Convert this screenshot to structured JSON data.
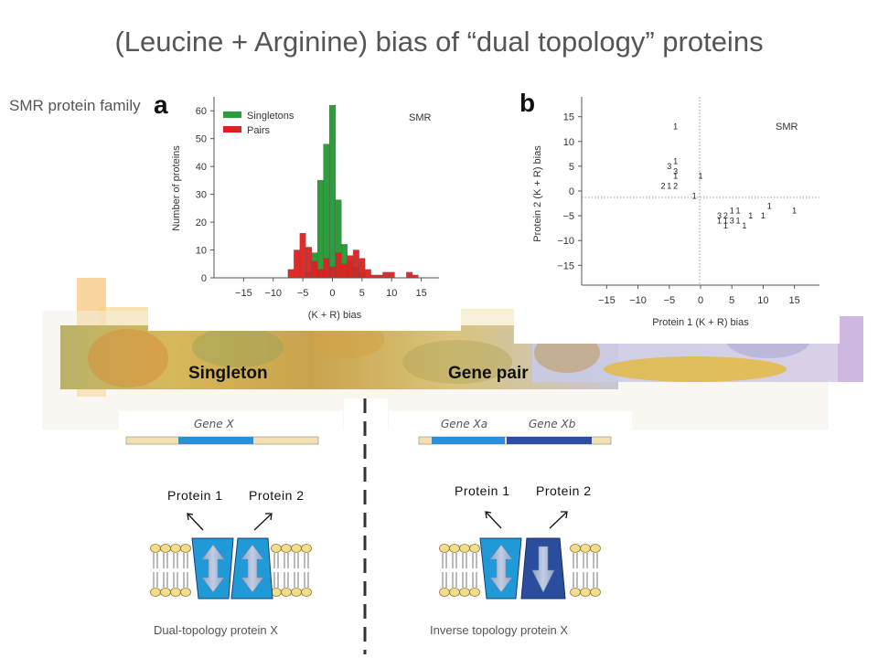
{
  "slide": {
    "title": "(Leucine + Arginine) bias of “dual topology” proteins",
    "side_label": "SMR protein family"
  },
  "panel_a": {
    "letter": "a",
    "tag": "SMR",
    "chart_data": {
      "type": "bar",
      "title": "",
      "xlabel": "(K + R) bias",
      "ylabel": "Number of proteins",
      "xlim": [
        -20,
        18
      ],
      "ylim": [
        0,
        65
      ],
      "x_ticks": [
        -15,
        -10,
        -5,
        0,
        5,
        10,
        15
      ],
      "y_ticks": [
        0,
        10,
        20,
        30,
        40,
        50,
        60
      ],
      "bin_width": 1,
      "legend_position": "top-left",
      "series": [
        {
          "name": "Singletons",
          "color": "#2e9e3c",
          "bins": [
            -6,
            -5,
            -4,
            -3,
            -2,
            -1,
            0,
            1,
            2,
            3,
            4,
            5
          ],
          "values": [
            0,
            0,
            2,
            9,
            35,
            48,
            62,
            28,
            12,
            6,
            4,
            2
          ]
        },
        {
          "name": "Pairs",
          "color": "#e02020",
          "bins": [
            -7,
            -6,
            -5,
            -4,
            -3,
            -2,
            -1,
            0,
            1,
            2,
            3,
            4,
            5,
            6,
            7,
            8,
            9,
            10,
            11,
            12,
            13,
            14
          ],
          "values": [
            3,
            10,
            16,
            11,
            6,
            3,
            7,
            4,
            9,
            5,
            8,
            10,
            7,
            3,
            1,
            1,
            2,
            2,
            0,
            0,
            2,
            1
          ]
        }
      ]
    }
  },
  "panel_b": {
    "letter": "b",
    "tag": "SMR",
    "chart_data": {
      "type": "scatter",
      "title": "",
      "xlabel": "Protein 1 (K + R) bias",
      "ylabel": "Protein 2 (K + R) bias",
      "xlim": [
        -19,
        19
      ],
      "ylim": [
        -19,
        19
      ],
      "x_ticks": [
        -15,
        -10,
        -5,
        0,
        5,
        10,
        15
      ],
      "y_ticks": [
        -15,
        -10,
        -5,
        0,
        5,
        10,
        15
      ],
      "points": [
        {
          "x": -4,
          "y": 13,
          "label": "1"
        },
        {
          "x": -5,
          "y": 5,
          "label": "3"
        },
        {
          "x": -4,
          "y": 6,
          "label": "1"
        },
        {
          "x": -4,
          "y": 4,
          "label": "3"
        },
        {
          "x": -4,
          "y": 3,
          "label": "1"
        },
        {
          "x": 0,
          "y": 3,
          "label": "1"
        },
        {
          "x": -6,
          "y": 1,
          "label": "2"
        },
        {
          "x": -5,
          "y": 1,
          "label": "1"
        },
        {
          "x": -4,
          "y": 1,
          "label": "2"
        },
        {
          "x": -1,
          "y": -1,
          "label": "1"
        },
        {
          "x": 3,
          "y": -5,
          "label": "3"
        },
        {
          "x": 4,
          "y": -5,
          "label": "2"
        },
        {
          "x": 5,
          "y": -4,
          "label": "1"
        },
        {
          "x": 6,
          "y": -4,
          "label": "1"
        },
        {
          "x": 3,
          "y": -6,
          "label": "1"
        },
        {
          "x": 4,
          "y": -6,
          "label": "1"
        },
        {
          "x": 5,
          "y": -6,
          "label": "3"
        },
        {
          "x": 6,
          "y": -6,
          "label": "1"
        },
        {
          "x": 4,
          "y": -7,
          "label": "1"
        },
        {
          "x": 8,
          "y": -5,
          "label": "1"
        },
        {
          "x": 10,
          "y": -5,
          "label": "1"
        },
        {
          "x": 11,
          "y": -3,
          "label": "1"
        },
        {
          "x": 15,
          "y": -4,
          "label": "1"
        },
        {
          "x": 7,
          "y": -7,
          "label": "1"
        }
      ]
    }
  },
  "banner": {
    "singleton": "Singleton",
    "gene_pair": "Gene pair"
  },
  "left_diagram": {
    "gene": "Gene X",
    "protein1": "Protein 1",
    "protein2": "Protein 2",
    "caption": "Dual-topology protein X"
  },
  "right_diagram": {
    "gene_a": "Gene Xa",
    "gene_b": "Gene Xb",
    "protein1": "Protein 1",
    "protein2": "Protein 2",
    "caption": "Inverse topology protein X"
  },
  "colors": {
    "gene_bar": "#f5dfae",
    "gene_blue": "#2a8fd6",
    "gene_dark_blue": "#2d4fa0",
    "protein_blue": "#1f9ad6",
    "protein_dark_blue": "#2a4d9e",
    "lipid_head": "#f3dd8c",
    "singleton_green": "#2e9e3c",
    "pair_red": "#e02020"
  }
}
